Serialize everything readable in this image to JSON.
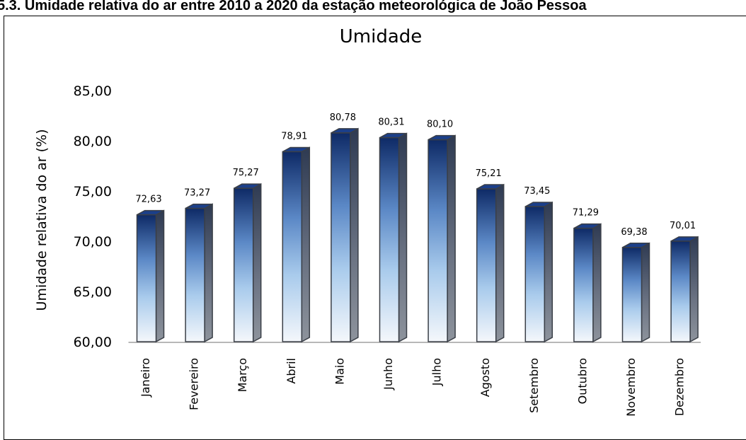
{
  "caption": "5.3. Umidade relativa do ar entre 2010 a 2020 da estação meteorológica de João Pessoa",
  "chart_data": {
    "type": "bar",
    "title": "Umidade",
    "xlabel": "",
    "ylabel": "Umidade relativa do ar (%)",
    "ylim": [
      60,
      85
    ],
    "yticks": [
      "60,00",
      "65,00",
      "70,00",
      "75,00",
      "80,00",
      "85,00"
    ],
    "categories": [
      "Janeiro",
      "Fevereiro",
      "Março",
      "Abril",
      "Maio",
      "Junho",
      "Julho",
      "Agosto",
      "Setembro",
      "Outubro",
      "Novembro",
      "Dezembro"
    ],
    "values": [
      72.63,
      73.27,
      75.27,
      78.91,
      80.78,
      80.31,
      80.1,
      75.21,
      73.45,
      71.29,
      69.38,
      70.01
    ],
    "value_labels": [
      "72,63",
      "73,27",
      "75,27",
      "78,91",
      "80,78",
      "80,31",
      "80,10",
      "75,21",
      "73,45",
      "71,29",
      "69,38",
      "70,01"
    ],
    "grid": false,
    "legend": "none",
    "colors": {
      "bar_top": "#0e2a66",
      "bar_mid": "#9fc3e8",
      "bar_bottom": "#f2f6fb",
      "side": "#4a4f57",
      "top_face": "#1b3f8a"
    }
  }
}
